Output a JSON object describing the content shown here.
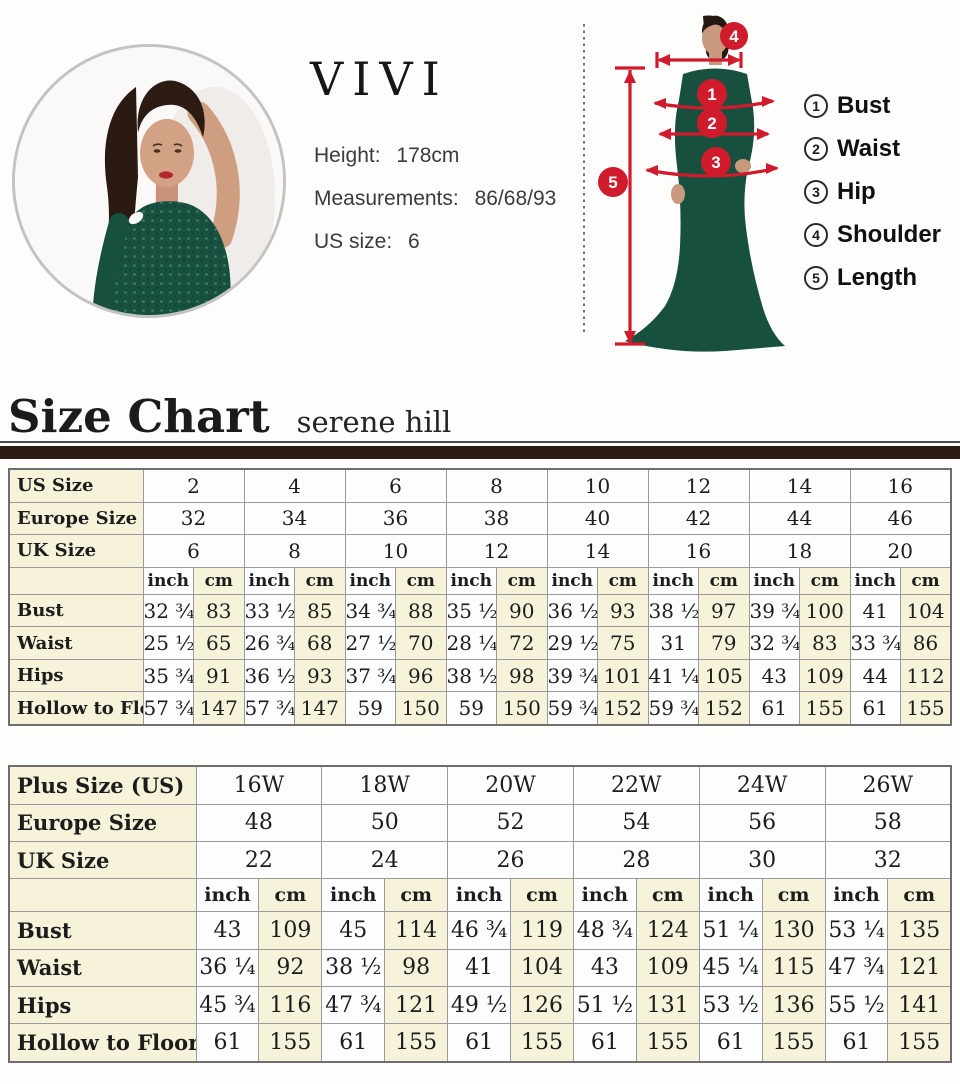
{
  "brand": "VIVI",
  "model_info": {
    "height_label": "Height:",
    "height_value": "178cm",
    "measurements_label": "Measurements:",
    "measurements_value": "86/68/93",
    "us_size_label": "US size:",
    "us_size_value": "6"
  },
  "diagram": {
    "markers": [
      "1",
      "2",
      "3",
      "4",
      "5"
    ],
    "legend": [
      {
        "num": "1",
        "label": "Bust"
      },
      {
        "num": "2",
        "label": "Waist"
      },
      {
        "num": "3",
        "label": "Hip"
      },
      {
        "num": "4",
        "label": "Shoulder"
      },
      {
        "num": "5",
        "label": "Length"
      }
    ],
    "accent_color": "#cf1b2b",
    "dress_color": "#17503f"
  },
  "heading": {
    "title": "Size Chart",
    "subtitle": "serene hill"
  },
  "colors": {
    "cream_cell": "#f6f3da",
    "white_cell": "#fdfdfd",
    "grid_border": "#9a9a9a",
    "divider_bar": "#2b1b13"
  },
  "table1": {
    "size_rows": [
      {
        "label": "US Size",
        "values": [
          "2",
          "4",
          "6",
          "8",
          "10",
          "12",
          "14",
          "16"
        ]
      },
      {
        "label": "Europe Size",
        "values": [
          "32",
          "34",
          "36",
          "38",
          "40",
          "42",
          "44",
          "46"
        ]
      },
      {
        "label": "UK Size",
        "values": [
          "6",
          "8",
          "10",
          "12",
          "14",
          "16",
          "18",
          "20"
        ]
      }
    ],
    "units": [
      "inch",
      "cm"
    ],
    "measure_rows": [
      {
        "label": "Bust",
        "inch": [
          "32 ¾",
          "33 ½",
          "34 ¾",
          "35 ½",
          "36 ½",
          "38 ½",
          "39 ¾",
          "41"
        ],
        "cm": [
          "83",
          "85",
          "88",
          "90",
          "93",
          "97",
          "100",
          "104"
        ]
      },
      {
        "label": "Waist",
        "inch": [
          "25 ½",
          "26 ¾",
          "27 ½",
          "28 ¼",
          "29 ½",
          "31",
          "32 ¾",
          "33 ¾"
        ],
        "cm": [
          "65",
          "68",
          "70",
          "72",
          "75",
          "79",
          "83",
          "86"
        ]
      },
      {
        "label": "Hips",
        "inch": [
          "35 ¾",
          "36 ½",
          "37 ¾",
          "38 ½",
          "39 ¾",
          "41 ¼",
          "43",
          "44"
        ],
        "cm": [
          "91",
          "93",
          "96",
          "98",
          "101",
          "105",
          "109",
          "112"
        ]
      },
      {
        "label": "Hollow to Floor",
        "inch": [
          "57 ¾",
          "57 ¾",
          "59",
          "59",
          "59 ¾",
          "59 ¾",
          "61",
          "61"
        ],
        "cm": [
          "147",
          "147",
          "150",
          "150",
          "152",
          "152",
          "155",
          "155"
        ]
      }
    ]
  },
  "table2": {
    "size_rows": [
      {
        "label": "Plus Size (US)",
        "values": [
          "16W",
          "18W",
          "20W",
          "22W",
          "24W",
          "26W"
        ]
      },
      {
        "label": "Europe Size",
        "values": [
          "48",
          "50",
          "52",
          "54",
          "56",
          "58"
        ]
      },
      {
        "label": "UK Size",
        "values": [
          "22",
          "24",
          "26",
          "28",
          "30",
          "32"
        ]
      }
    ],
    "units": [
      "inch",
      "cm"
    ],
    "measure_rows": [
      {
        "label": "Bust",
        "inch": [
          "43",
          "45",
          "46 ¾",
          "48 ¾",
          "51 ¼",
          "53 ¼"
        ],
        "cm": [
          "109",
          "114",
          "119",
          "124",
          "130",
          "135"
        ]
      },
      {
        "label": "Waist",
        "inch": [
          "36 ¼",
          "38 ½",
          "41",
          "43",
          "45 ¼",
          "47 ¾"
        ],
        "cm": [
          "92",
          "98",
          "104",
          "109",
          "115",
          "121"
        ]
      },
      {
        "label": "Hips",
        "inch": [
          "45 ¾",
          "47 ¾",
          "49 ½",
          "51 ½",
          "53 ½",
          "55 ½"
        ],
        "cm": [
          "116",
          "121",
          "126",
          "131",
          "136",
          "141"
        ]
      },
      {
        "label": "Hollow to Floor",
        "inch": [
          "61",
          "61",
          "61",
          "61",
          "61",
          "61"
        ],
        "cm": [
          "155",
          "155",
          "155",
          "155",
          "155",
          "155"
        ]
      }
    ]
  }
}
